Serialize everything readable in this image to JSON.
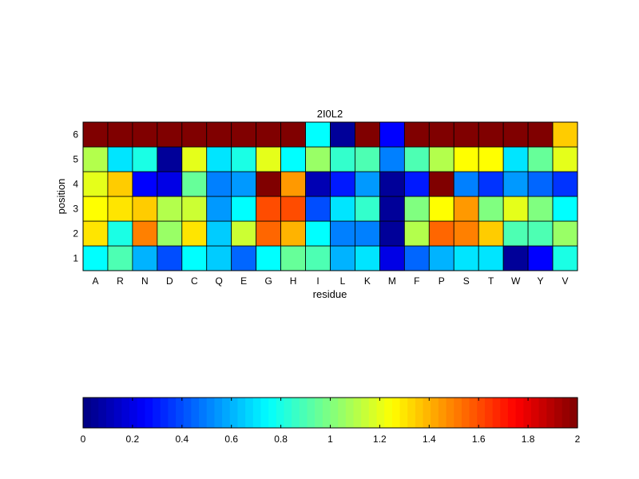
{
  "chart_data": [
    {
      "type": "heatmap",
      "title": "2I0L2",
      "xlabel": "residue",
      "ylabel": "position",
      "x_categories": [
        "A",
        "R",
        "N",
        "D",
        "C",
        "Q",
        "E",
        "G",
        "H",
        "I",
        "L",
        "K",
        "M",
        "F",
        "P",
        "S",
        "T",
        "W",
        "Y",
        "V"
      ],
      "y_categories": [
        "1",
        "2",
        "3",
        "4",
        "5",
        "6"
      ],
      "value_range": [
        0,
        2
      ],
      "colormap": "jet",
      "values": [
        [
          0.75,
          0.9,
          0.6,
          0.4,
          0.75,
          0.65,
          0.45,
          0.75,
          0.95,
          0.9,
          0.6,
          0.7,
          0.2,
          0.45,
          0.6,
          0.7,
          0.7,
          0.05,
          0.25,
          0.8
        ],
        [
          1.3,
          0.8,
          1.5,
          1.05,
          1.3,
          0.65,
          1.15,
          1.55,
          1.4,
          0.75,
          0.5,
          0.5,
          0.05,
          1.1,
          1.55,
          1.5,
          1.35,
          0.9,
          0.9,
          1.05
        ],
        [
          1.25,
          1.3,
          1.35,
          1.1,
          1.15,
          0.55,
          0.75,
          1.6,
          1.6,
          0.4,
          0.7,
          0.85,
          0.05,
          1.0,
          1.25,
          1.45,
          1.0,
          1.2,
          1.0,
          0.75
        ],
        [
          1.2,
          1.35,
          0.25,
          0.2,
          0.95,
          0.5,
          0.55,
          2.0,
          1.45,
          0.1,
          0.3,
          0.55,
          0.05,
          0.3,
          2.0,
          0.5,
          0.35,
          0.55,
          0.45,
          0.35
        ],
        [
          1.1,
          0.7,
          0.8,
          0.05,
          1.2,
          0.7,
          0.8,
          1.2,
          0.75,
          1.05,
          0.85,
          0.9,
          0.5,
          0.9,
          1.1,
          1.25,
          1.25,
          0.7,
          0.95,
          1.2
        ],
        [
          2.0,
          2.0,
          2.0,
          2.0,
          2.0,
          2.0,
          2.0,
          2.0,
          2.0,
          0.75,
          0.05,
          2.0,
          0.25,
          2.0,
          2.0,
          2.0,
          2.0,
          2.0,
          2.0,
          1.35
        ]
      ]
    },
    {
      "type": "colorbar",
      "range": [
        0,
        2
      ],
      "ticks": [
        "0",
        "0.2",
        "0.4",
        "0.6",
        "0.8",
        "1",
        "1.2",
        "1.4",
        "1.6",
        "1.8",
        "2"
      ],
      "colormap": "jet"
    }
  ]
}
